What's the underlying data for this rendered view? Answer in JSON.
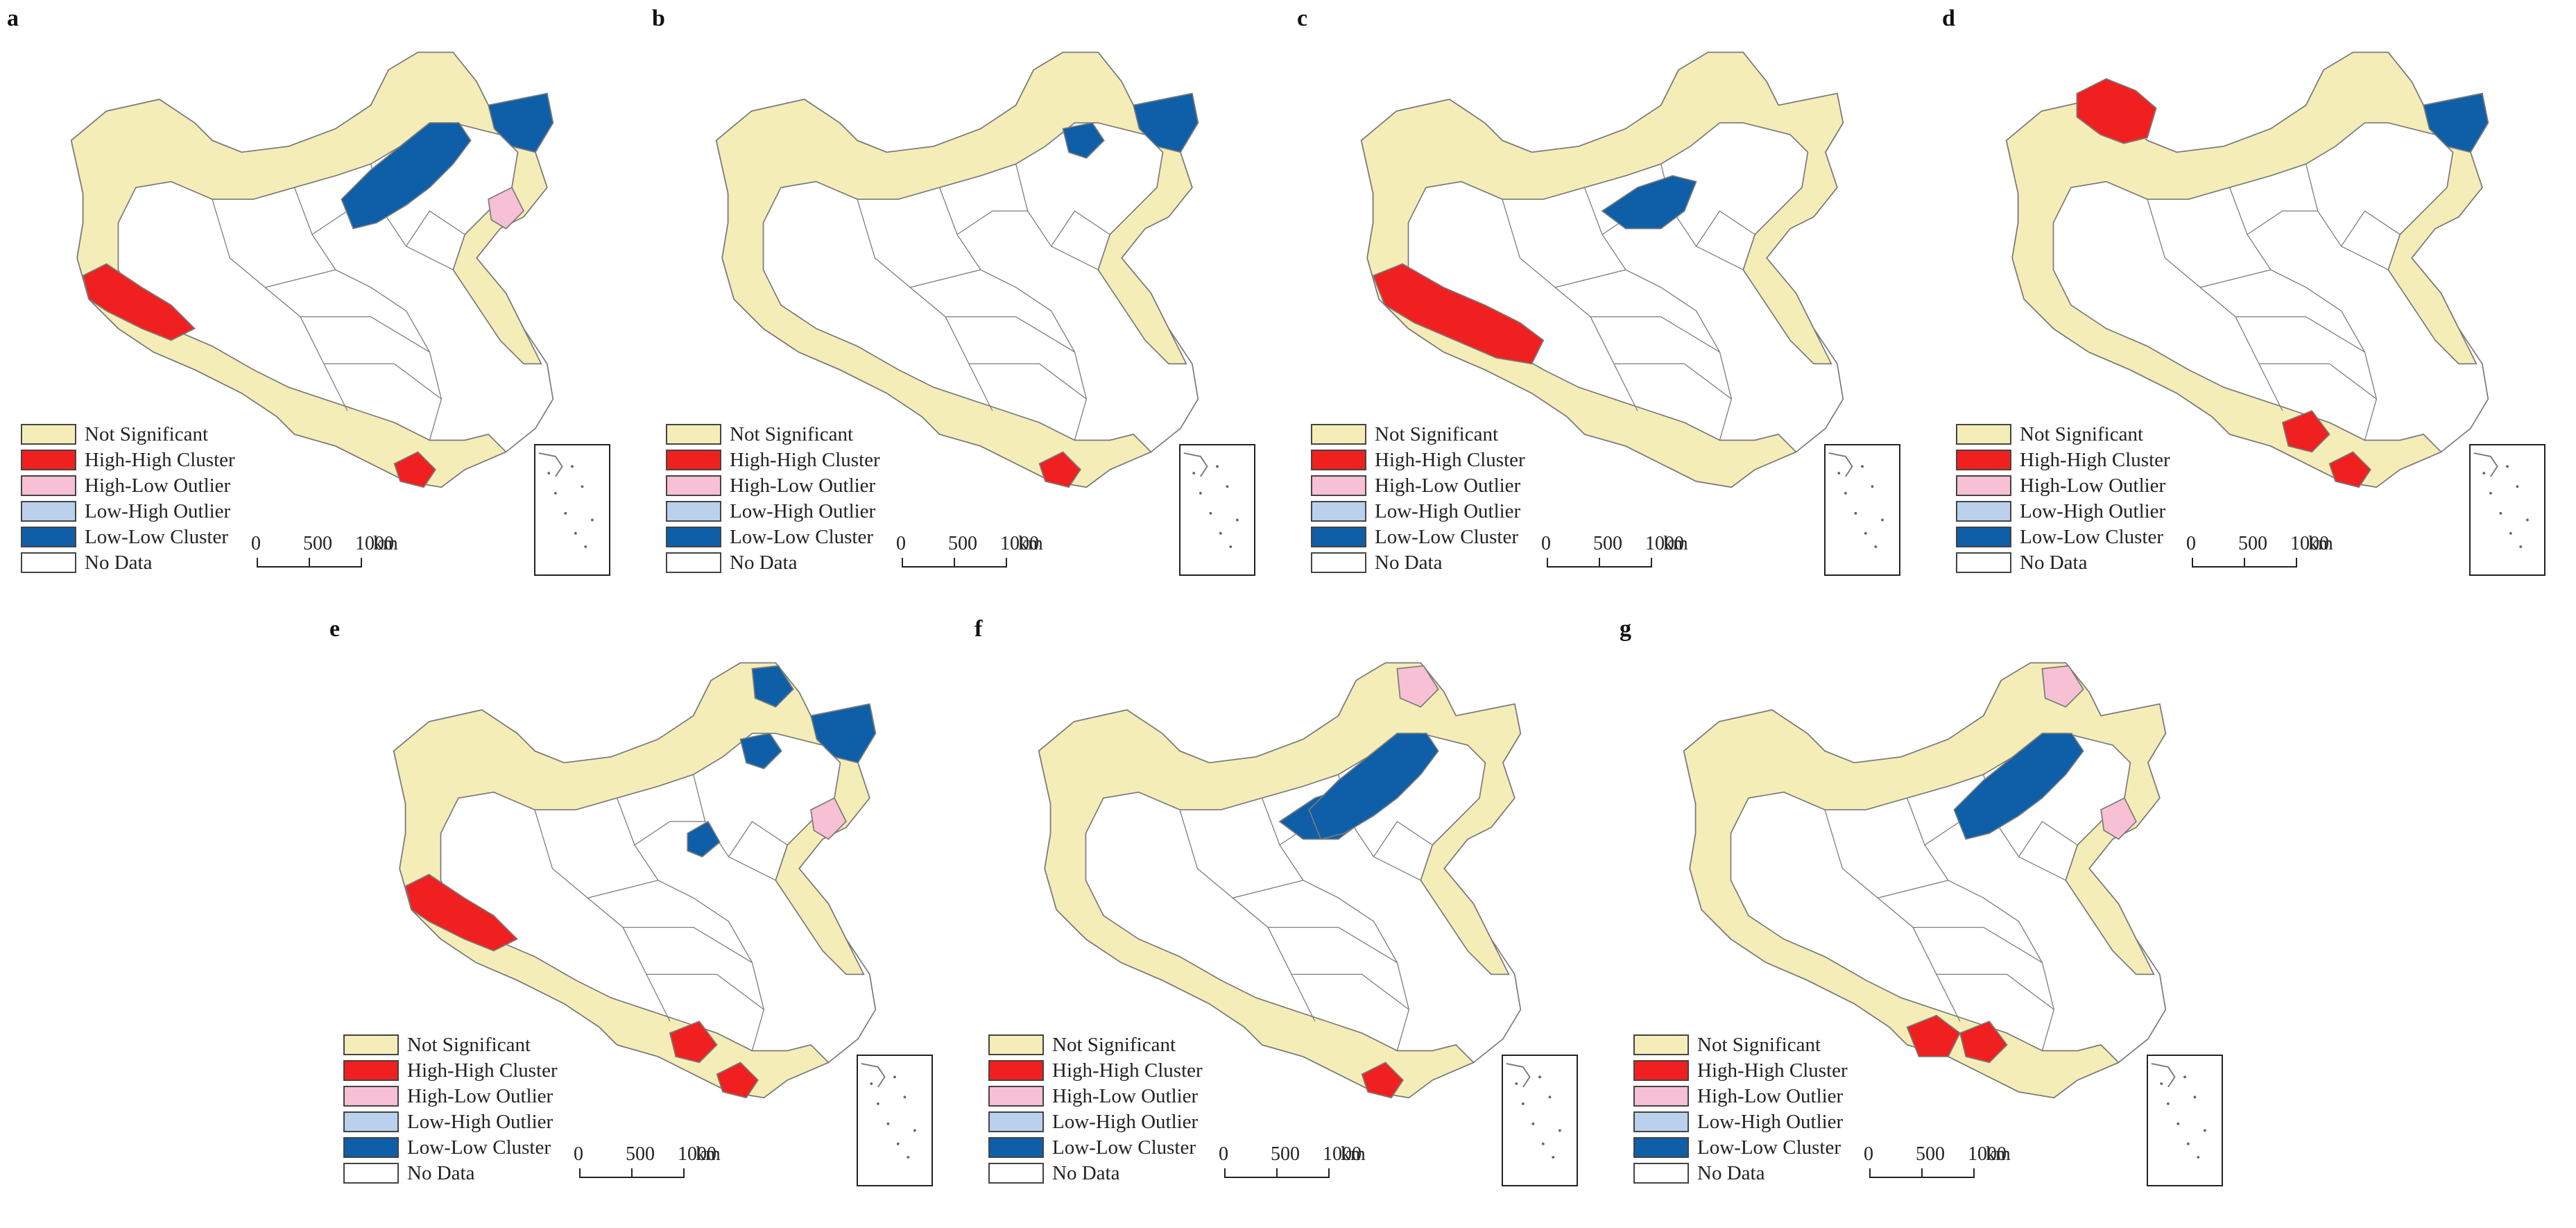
{
  "colors": {
    "not_significant": "#F5EDB8",
    "high_high_cluster": "#F02020",
    "high_low_outlier": "#F7C0D4",
    "low_high_outlier": "#BBD0EC",
    "low_low_cluster": "#0E5FA8",
    "no_data": "#FFFFFF",
    "border": "#7A7A7A"
  },
  "legend": [
    {
      "key": "not_significant",
      "label": "Not  Significant"
    },
    {
      "key": "high_high_cluster",
      "label": "High-High Cluster"
    },
    {
      "key": "high_low_outlier",
      "label": "High-Low Outlier"
    },
    {
      "key": "low_high_outlier",
      "label": "Low-High Outlier"
    },
    {
      "key": "low_low_cluster",
      "label": "Low-Low Cluster"
    },
    {
      "key": "no_data",
      "label": "No Data"
    }
  ],
  "scale": {
    "ticks": [
      "0",
      "500",
      "1000"
    ],
    "unit": "km"
  },
  "panels": [
    {
      "letter": "a",
      "regions": {
        "low_low_cluster": [
          "northeast-belt",
          "far-northeast"
        ],
        "high_low_outlier": [
          "east-coast-northeast"
        ],
        "high_high_cluster": [
          "southwest-tibet",
          "south-coast"
        ]
      }
    },
    {
      "letter": "b",
      "regions": {
        "low_low_cluster": [
          "northeast-central",
          "far-northeast"
        ],
        "high_high_cluster": [
          "south-coast"
        ]
      }
    },
    {
      "letter": "c",
      "regions": {
        "low_low_cluster": [
          "north-central"
        ],
        "high_high_cluster": [
          "southwest-tibet-long"
        ]
      }
    },
    {
      "letter": "d",
      "regions": {
        "high_high_cluster": [
          "northwest-border",
          "south-coast",
          "south-guangxi"
        ],
        "low_low_cluster": [
          "far-northeast"
        ]
      }
    },
    {
      "letter": "e",
      "regions": {
        "low_low_cluster": [
          "northeast-top",
          "northeast-central",
          "far-northeast",
          "north-small"
        ],
        "high_low_outlier": [
          "east-coast-northeast"
        ],
        "high_high_cluster": [
          "southwest-tibet",
          "south-guangxi",
          "south-coast"
        ]
      }
    },
    {
      "letter": "f",
      "regions": {
        "low_low_cluster": [
          "north-central",
          "northeast-belt"
        ],
        "high_low_outlier": [
          "northeast-top"
        ],
        "high_high_cluster": [
          "south-coast"
        ]
      }
    },
    {
      "letter": "g",
      "regions": {
        "low_low_cluster": [
          "northeast-belt"
        ],
        "high_low_outlier": [
          "northeast-top",
          "east-coast-northeast"
        ],
        "high_high_cluster": [
          "south-yunnan",
          "south-guangxi"
        ]
      }
    }
  ]
}
